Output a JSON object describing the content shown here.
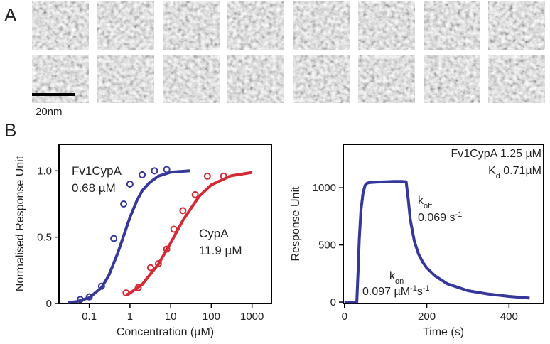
{
  "figure": {
    "panel_a": "A",
    "panel_b": "B",
    "scale_bar": "20nm"
  },
  "chart_data": [
    {
      "type": "scatter-fit",
      "xscale": "log",
      "xlabel": "Concentration (µM)",
      "ylabel": "Normalised Response Unit",
      "xlim": [
        0.018,
        3000
      ],
      "ylim": [
        0,
        1.2
      ],
      "xticks": [
        0.1,
        1,
        10,
        100,
        1000
      ],
      "yticks": [
        0,
        0.5,
        {
          "value": 1,
          "label": "1.0"
        }
      ],
      "series": [
        {
          "name": "Fv1CypA",
          "kd_label": "0.68 µM",
          "color": "#35379a",
          "x": [
            0.06,
            0.1,
            0.2,
            0.4,
            0.7,
            1,
            2,
            4,
            8
          ],
          "values": [
            0.03,
            0.05,
            0.13,
            0.49,
            0.75,
            0.9,
            0.97,
            1.0,
            1.01
          ],
          "fit_x": [
            0.03,
            0.05,
            0.1,
            0.2,
            0.3,
            0.5,
            0.7,
            1,
            1.5,
            2,
            3,
            5,
            10,
            30
          ],
          "fit_values": [
            0.007,
            0.015,
            0.044,
            0.12,
            0.21,
            0.38,
            0.51,
            0.65,
            0.78,
            0.85,
            0.91,
            0.96,
            0.99,
            1.0
          ]
        },
        {
          "name": "CypA",
          "kd_label": "11.9 µM",
          "color": "#d42a35",
          "x": [
            0.8,
            1.6,
            3.2,
            5,
            8,
            12,
            20,
            40,
            80,
            200
          ],
          "values": [
            0.08,
            0.12,
            0.27,
            0.3,
            0.41,
            0.56,
            0.7,
            0.82,
            0.96,
            0.96
          ],
          "fit_x": [
            0.8,
            1,
            2,
            5,
            10,
            20,
            50,
            100,
            300,
            1000
          ],
          "fit_values": [
            0.063,
            0.078,
            0.144,
            0.296,
            0.457,
            0.627,
            0.808,
            0.894,
            0.962,
            0.988
          ]
        }
      ]
    },
    {
      "type": "line",
      "xlabel": "Time (s)",
      "ylabel": "Response Unit",
      "xlim": [
        -3,
        484
      ],
      "ylim": [
        -12,
        1380
      ],
      "xticks": [
        0,
        200,
        400
      ],
      "yticks": [
        0,
        500,
        1000
      ],
      "series": [
        {
          "color": "#35379a",
          "x": [
            0,
            30,
            33,
            36,
            40,
            45,
            50,
            55,
            60,
            80,
            100,
            120,
            140,
            150,
            155,
            160,
            170,
            180,
            190,
            200,
            220,
            250,
            300,
            350,
            400,
            450
          ],
          "values": [
            0,
            0,
            250,
            550,
            800,
            950,
            1020,
            1040,
            1045,
            1050,
            1052,
            1055,
            1055,
            1052,
            900,
            720,
            530,
            420,
            350,
            300,
            230,
            160,
            100,
            70,
            50,
            35
          ]
        }
      ],
      "annotations": [
        [
          {
            "t": "Fv1CypA 1.25 µM"
          }
        ],
        [
          {
            "t": "K"
          },
          {
            "t": "d",
            "shift": "sub"
          },
          {
            "t": " 0.71µM"
          }
        ],
        [
          {
            "t": "k"
          },
          {
            "t": "off",
            "shift": "sub"
          }
        ],
        [
          {
            "t": "0.069 s"
          },
          {
            "t": "-1",
            "shift": "super"
          }
        ],
        [
          {
            "t": "k"
          },
          {
            "t": "on",
            "shift": "sub"
          }
        ],
        [
          {
            "t": "0.097 µM"
          },
          {
            "t": "-1",
            "shift": "super"
          },
          {
            "t": "s"
          },
          {
            "t": "-1",
            "shift": "super"
          }
        ]
      ]
    }
  ]
}
